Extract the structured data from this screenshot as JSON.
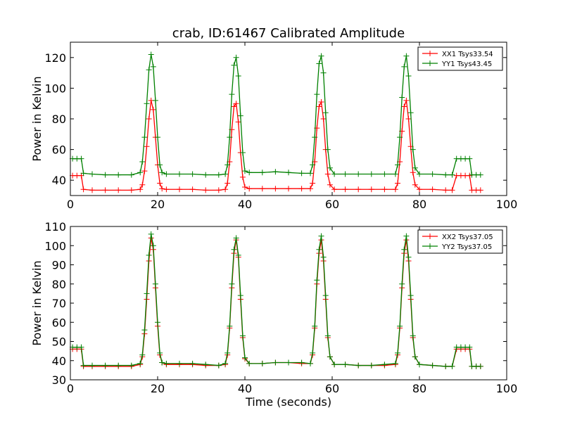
{
  "title": "crab, ID:61467 Calibrated Amplitude",
  "colors": {
    "xx": "#ff0000",
    "yy": "#008000",
    "axis": "#000000",
    "background": "#ffffff"
  },
  "chart_data": [
    {
      "type": "line",
      "title": "crab, ID:61467 Calibrated Amplitude",
      "xlabel": "",
      "ylabel": "Power in Kelvin",
      "xlim": [
        0,
        100
      ],
      "ylim": [
        30,
        130
      ],
      "xticks": [
        0,
        20,
        40,
        60,
        80,
        100
      ],
      "yticks": [
        40,
        60,
        80,
        100,
        120
      ],
      "grid": false,
      "legend_position": "top-right",
      "marker": "plus",
      "series": [
        {
          "name": "XX1 Tsys33.54",
          "color": "#ff0000",
          "x": [
            0.5,
            1.5,
            2.5,
            3.0,
            5,
            8,
            11,
            14,
            16,
            16.5,
            17,
            17.5,
            18,
            18.5,
            19,
            19.5,
            20,
            20.5,
            21,
            22,
            25,
            28,
            31,
            34,
            35.5,
            36,
            36.5,
            37,
            37.5,
            38,
            38.5,
            39,
            39.5,
            40,
            41,
            44,
            47,
            50,
            53,
            55,
            55.5,
            56,
            56.5,
            57,
            57.5,
            58,
            58.5,
            59,
            59.5,
            60.5,
            63,
            66,
            69,
            72,
            74.5,
            75,
            75.5,
            76,
            76.5,
            77,
            77.5,
            78,
            78.5,
            79,
            80,
            83,
            86,
            87.5,
            88.5,
            89.5,
            90.5,
            91.5,
            92.0,
            93,
            94
          ],
          "y": [
            43,
            43,
            43,
            34,
            33.5,
            33.5,
            33.5,
            33.5,
            34,
            37,
            46,
            62,
            80,
            92,
            86,
            68,
            50,
            38,
            34.5,
            34,
            34,
            34,
            33.5,
            33.5,
            34,
            38,
            52,
            73,
            88,
            90,
            78,
            58,
            42,
            35.5,
            34.5,
            34.5,
            34.5,
            34.5,
            34.5,
            34.5,
            38,
            52,
            74,
            88,
            91,
            80,
            60,
            44,
            37,
            34,
            34,
            34,
            34,
            34,
            34,
            38,
            52,
            72,
            88,
            92,
            80,
            62,
            45,
            37,
            34,
            34,
            33.5,
            33.5,
            43,
            43,
            43,
            43,
            33.5,
            33.5,
            33.5
          ]
        },
        {
          "name": "YY1 Tsys43.45",
          "color": "#008000",
          "x": [
            0.5,
            1.5,
            2.5,
            3.0,
            5,
            8,
            11,
            14,
            16,
            16.5,
            17,
            17.5,
            18,
            18.5,
            19,
            19.5,
            20,
            20.5,
            21,
            22,
            25,
            28,
            31,
            34,
            35.5,
            36,
            36.5,
            37,
            37.5,
            38,
            38.5,
            39,
            39.5,
            40,
            41,
            44,
            47,
            50,
            53,
            55,
            55.5,
            56,
            56.5,
            57,
            57.5,
            58,
            58.5,
            59,
            59.5,
            60.5,
            63,
            66,
            69,
            72,
            74.5,
            75,
            75.5,
            76,
            76.5,
            77,
            77.5,
            78,
            78.5,
            79,
            80,
            83,
            86,
            87.5,
            88.5,
            89.5,
            90.5,
            91.5,
            92.0,
            93,
            94
          ],
          "y": [
            54,
            54,
            54,
            44.5,
            44,
            43.5,
            43.5,
            43.5,
            45,
            52,
            68,
            90,
            112,
            122,
            114,
            92,
            68,
            50,
            45,
            44,
            44,
            44,
            43.5,
            43.5,
            44,
            50,
            68,
            96,
            115,
            120,
            108,
            82,
            58,
            46,
            45,
            45,
            45.5,
            45,
            44.5,
            44.5,
            50,
            68,
            96,
            116,
            121,
            110,
            84,
            60,
            48,
            44,
            44,
            44,
            44,
            44,
            44,
            50,
            68,
            94,
            114,
            121,
            108,
            84,
            60,
            48,
            44,
            44,
            43.5,
            43.5,
            54,
            54,
            54,
            54,
            43.5,
            43.5,
            43.5
          ]
        }
      ]
    },
    {
      "type": "line",
      "title": "",
      "xlabel": "Time (seconds)",
      "ylabel": "Power in Kelvin",
      "xlim": [
        0,
        100
      ],
      "ylim": [
        30,
        110
      ],
      "xticks": [
        0,
        20,
        40,
        60,
        80,
        100
      ],
      "yticks": [
        30,
        40,
        50,
        60,
        70,
        80,
        90,
        100,
        110
      ],
      "grid": false,
      "legend_position": "top-right",
      "marker": "plus",
      "series": [
        {
          "name": "XX2 Tsys37.05",
          "color": "#ff0000",
          "x": [
            0.5,
            1.5,
            2.5,
            3.0,
            5,
            8,
            11,
            14,
            16,
            16.5,
            17,
            17.5,
            18,
            18.5,
            19,
            19.5,
            20,
            20.5,
            21,
            22,
            25,
            28,
            31,
            34,
            35.5,
            36,
            36.5,
            37,
            37.5,
            38,
            38.5,
            39,
            39.5,
            40,
            41,
            44,
            47,
            50,
            53,
            55,
            55.5,
            56,
            56.5,
            57,
            57.5,
            58,
            58.5,
            59,
            59.5,
            60.5,
            63,
            66,
            69,
            72,
            74.5,
            75,
            75.5,
            76,
            76.5,
            77,
            77.5,
            78,
            78.5,
            79,
            80,
            83,
            86,
            87.5,
            88.5,
            89.5,
            90.5,
            91.5,
            92.0,
            93,
            94
          ],
          "y": [
            46,
            46,
            46,
            37,
            37,
            37,
            37,
            37,
            38,
            42,
            54,
            72,
            92,
            104,
            98,
            78,
            58,
            43,
            39,
            38,
            38,
            38,
            37.5,
            37.5,
            38,
            43,
            57,
            78,
            96,
            103,
            94,
            72,
            52,
            41,
            38.5,
            38.5,
            39,
            39,
            38.5,
            38.5,
            43,
            57,
            80,
            96,
            103,
            92,
            72,
            52,
            42,
            38,
            38,
            37.5,
            37.5,
            37.5,
            38,
            43,
            57,
            78,
            96,
            103,
            92,
            72,
            52,
            42,
            38,
            37.5,
            37,
            37,
            46,
            46,
            46,
            46,
            37,
            37,
            37
          ]
        },
        {
          "name": "YY2 Tsys37.05",
          "color": "#008000",
          "x": [
            0.5,
            1.5,
            2.5,
            3.0,
            5,
            8,
            11,
            14,
            16,
            16.5,
            17,
            17.5,
            18,
            18.5,
            19,
            19.5,
            20,
            20.5,
            21,
            22,
            25,
            28,
            31,
            34,
            35.5,
            36,
            36.5,
            37,
            37.5,
            38,
            38.5,
            39,
            39.5,
            40,
            41,
            44,
            47,
            50,
            53,
            55,
            55.5,
            56,
            56.5,
            57,
            57.5,
            58,
            58.5,
            59,
            59.5,
            60.5,
            63,
            66,
            69,
            72,
            74.5,
            75,
            75.5,
            76,
            76.5,
            77,
            77.5,
            78,
            78.5,
            79,
            80,
            83,
            86,
            87.5,
            88.5,
            89.5,
            90.5,
            91.5,
            92.0,
            93,
            94
          ],
          "y": [
            47,
            47,
            47,
            37.5,
            37.5,
            37.5,
            37.5,
            37.5,
            38.5,
            43,
            56,
            75,
            95,
            106,
            100,
            80,
            60,
            44,
            39,
            38.5,
            38.5,
            38.5,
            38,
            37.5,
            38.5,
            44,
            58,
            80,
            98,
            104,
            95,
            74,
            53,
            41.5,
            38.5,
            38.5,
            39,
            39,
            39,
            38.5,
            44,
            58,
            82,
            98,
            105,
            94,
            74,
            53,
            42,
            38,
            38,
            37.5,
            37.5,
            38,
            38.5,
            44,
            58,
            80,
            98,
            105,
            94,
            74,
            53,
            42,
            38,
            37.5,
            37,
            37,
            47,
            47,
            47,
            47,
            37,
            37,
            37
          ]
        }
      ]
    }
  ]
}
